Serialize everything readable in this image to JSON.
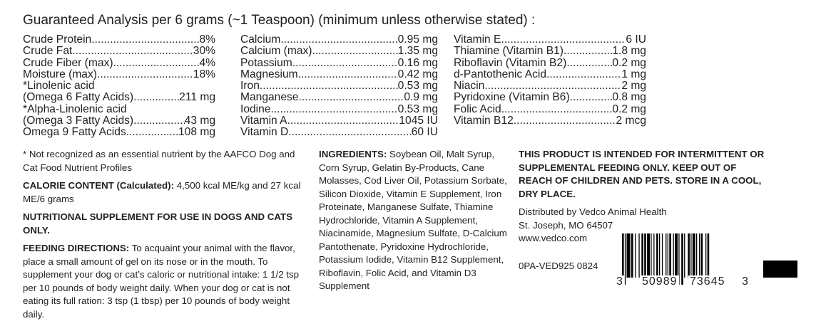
{
  "title": "Guaranteed Analysis per 6 grams (~1 Teaspoon) (minimum unless otherwise stated) :",
  "analysis": {
    "col1": [
      {
        "label": "Crude Protein",
        "value": "8%"
      },
      {
        "label": "Crude Fat",
        "value": "30%"
      },
      {
        "label": "Crude Fiber (max)",
        "value": "4%"
      },
      {
        "label": "Moisture (max)",
        "value": "18%"
      },
      {
        "label": "*Linolenic acid",
        "value": ""
      },
      {
        "label": "(Omega 6 Fatty Acids)",
        "value": "211 mg"
      },
      {
        "label": "*Alpha-Linolenic acid",
        "value": ""
      },
      {
        "label": "(Omega 3 Fatty Acids)",
        "value": "43 mg"
      },
      {
        "label": "Omega 9 Fatty Acids",
        "value": "108 mg"
      }
    ],
    "col2": [
      {
        "label": "Calcium",
        "value": "0.95 mg"
      },
      {
        "label": "Calcium (max)",
        "value": "1.35 mg"
      },
      {
        "label": "Potassium",
        "value": "0.16 mg"
      },
      {
        "label": "Magnesium",
        "value": "0.42 mg"
      },
      {
        "label": "Iron",
        "value": "0.53 mg"
      },
      {
        "label": "Manganese",
        "value": "0.9 mg"
      },
      {
        "label": "Iodine",
        "value": "0.53 mg"
      },
      {
        "label": "Vitamin A",
        "value": "1045 IU"
      },
      {
        "label": "Vitamin D",
        "value": "60 IU"
      }
    ],
    "col3": [
      {
        "label": "Vitamin E",
        "value": "6 IU"
      },
      {
        "label": "Thiamine (Vitamin B1)",
        "value": "1.8 mg"
      },
      {
        "label": "Riboflavin (Vitamin B2)",
        "value": "0.2 mg"
      },
      {
        "label": "d-Pantothenic Acid",
        "value": "1 mg"
      },
      {
        "label": "Niacin",
        "value": "2 mg"
      },
      {
        "label": "Pyridoxine (Vitamin B6)",
        "value": "0.8 mg"
      },
      {
        "label": "Folic Acid",
        "value": "0.2 mg"
      },
      {
        "label": "Vitamin B12",
        "value": "2 mcg"
      }
    ]
  },
  "footnote": "* Not recognized as an essential nutrient by the AAFCO Dog and Cat Food Nutrient Profiles",
  "calorie": {
    "heading": "CALORIE CONTENT (Calculated):",
    "text": " 4,500 kcal ME/kg and 27 kcal ME/6 grams"
  },
  "supplement_notice": "NUTRITIONAL SUPPLEMENT FOR USE IN DOGS AND CATS ONLY.",
  "feeding": {
    "heading": "FEEDING DIRECTIONS:",
    "text": " To acquaint your animal with the flavor, place a small amount of gel on its nose or in the mouth. To supplement your dog or cat’s caloric or nutritional intake: 1 1/2 tsp per 10 pounds of body weight daily. When your dog or cat is not eating its full ration: 3 tsp (1 tbsp) per 10 pounds of body weight daily."
  },
  "ingredients": {
    "heading": "INGREDIENTS:",
    "text": " Soybean Oil, Malt Syrup, Corn Syrup, Gelatin By-Products, Cane Molasses, Cod Liver Oil, Potassium Sorbate, Silicon Dioxide, Vitamin E Supplement, Iron Proteinate, Manganese Sulfate, Thiamine Hydrochloride, Vitamin A Supplement, Niacinamide, Magnesium Sulfate, D-Calcium Pantothenate, Pyridoxine Hydrochloride, Potassium Iodide, Vitamin B12 Supplement, Riboflavin, Folic Acid, and Vitamin D3 Supplement"
  },
  "warning": "THIS PRODUCT IS INTENDED FOR INTERMITTENT OR SUPPLEMENTAL FEEDING ONLY. KEEP OUT OF REACH OF CHILDREN AND PETS. STORE IN A COOL, DRY PLACE.",
  "distributor": {
    "line1": "Distributed by Vedco Animal Health",
    "line2": "St. Joseph, MO 64507",
    "website": "www.vedco.com"
  },
  "lot_code": "0PA-VED925 0824",
  "barcode": {
    "digit_left": "3",
    "group1": "50989",
    "group2": "73645",
    "digit_right": "3"
  }
}
